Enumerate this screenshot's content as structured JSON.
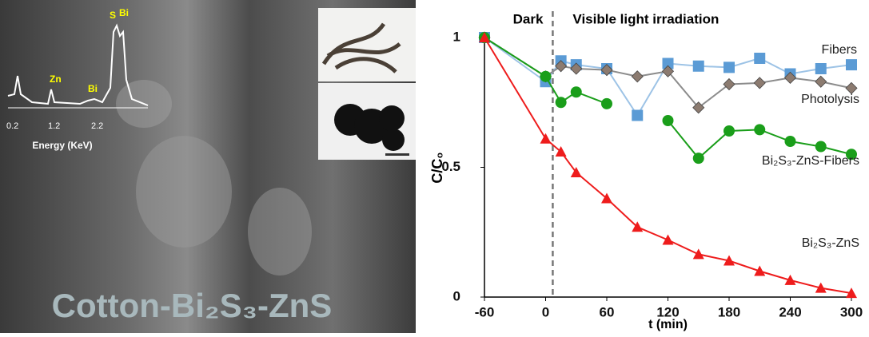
{
  "image_panel": {
    "caption": "Cotton-Bi₂S₃-ZnS",
    "eds_peaks": [
      "S",
      "Bi",
      "Zn",
      "Bi"
    ],
    "eds_ticks": [
      "0.2",
      "1.2",
      "2.2"
    ],
    "eds_xlabel": "Energy (KeV)"
  },
  "chart_data": {
    "type": "line",
    "xlabel": "t (min)",
    "ylabel": "C/C₀",
    "annotations": [
      "Dark",
      "Visible light irradiation"
    ],
    "vline": 7,
    "x": [
      -60,
      0,
      15,
      30,
      60,
      90,
      120,
      150,
      180,
      210,
      240,
      270,
      300
    ],
    "series": [
      {
        "name": "Fibers",
        "color": "#5b9bd5",
        "line_color": "#9dc3e6",
        "marker": "square",
        "values": [
          1,
          0.83,
          0.91,
          0.895,
          0.88,
          0.7,
          0.9,
          0.89,
          0.885,
          0.92,
          0.86,
          0.88,
          0.895
        ]
      },
      {
        "name": "Photolysis",
        "color": "#8c7b70",
        "line_color": "#8c8c8c",
        "marker": "diamond",
        "values": [
          1,
          0.85,
          0.89,
          0.88,
          0.875,
          0.85,
          0.87,
          0.73,
          0.82,
          0.825,
          0.845,
          0.83,
          0.805
        ]
      },
      {
        "name": "Bi₂S₃-ZnS-Fibers",
        "color": "#1a9e1a",
        "line_color": "#1a9e1a",
        "marker": "circle",
        "values": [
          1,
          0.85,
          0.75,
          0.79,
          0.745,
          null,
          0.68,
          0.535,
          0.64,
          0.645,
          0.6,
          0.58,
          0.55
        ]
      },
      {
        "name": "Bi₂S₃-ZnS",
        "color": "#ee1c1c",
        "line_color": "#ee1c1c",
        "marker": "triangle",
        "values": [
          1,
          0.61,
          0.56,
          0.48,
          0.38,
          0.27,
          0.22,
          0.165,
          0.14,
          0.1,
          0.065,
          0.035,
          0.015
        ]
      }
    ],
    "xlim": [
      -60,
      300
    ],
    "xticks": [
      -60,
      0,
      60,
      120,
      180,
      240,
      300
    ],
    "ylim": [
      0,
      1
    ],
    "yticks": [
      0,
      0.5,
      1
    ]
  }
}
